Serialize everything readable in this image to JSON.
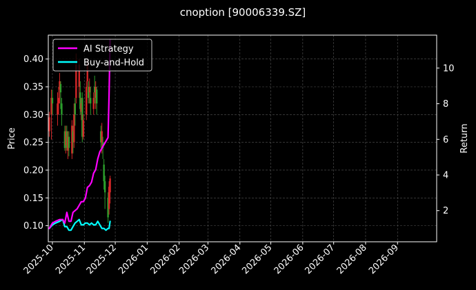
{
  "chart_data": {
    "type": "line",
    "title": "cnoption [90006339.SZ]",
    "ylabel_left": "Price",
    "ylabel_right": "Return",
    "x_ticks": [
      "2025-10",
      "2025-11",
      "2025-12",
      "2026-01",
      "2026-02",
      "2026-03",
      "2026-04",
      "2026-05",
      "2026-06",
      "2026-07",
      "2026-08",
      "2026-09"
    ],
    "y_left_ticks": [
      "0.10",
      "0.15",
      "0.20",
      "0.25",
      "0.30",
      "0.35",
      "0.40"
    ],
    "y_right_ticks": [
      "2",
      "4",
      "6",
      "8",
      "10"
    ],
    "ylim_left": [
      0.071,
      0.443
    ],
    "ylim_right": [
      0.25,
      11.85
    ],
    "xlim": [
      "2025-09-27",
      "2026-10-09"
    ],
    "grid": true,
    "legend_position": "top-left",
    "colors": {
      "up": "#d62728",
      "down": "#2ca02c",
      "strategy": "#ff00ff",
      "buy_hold": "#00ffff",
      "grid": "#555555",
      "background": "#000000"
    },
    "series": [
      {
        "name": "AI Strategy",
        "axis": "right",
        "x": [
          "2025-09-28",
          "2025-10-01",
          "2025-10-04",
          "2025-10-08",
          "2025-10-11",
          "2025-10-13",
          "2025-10-15",
          "2025-10-17",
          "2025-10-19",
          "2025-10-21",
          "2025-10-23",
          "2025-10-25",
          "2025-10-27",
          "2025-10-29",
          "2025-10-31",
          "2025-11-02",
          "2025-11-04",
          "2025-11-06",
          "2025-11-08",
          "2025-11-10",
          "2025-11-12",
          "2025-11-14",
          "2025-11-16",
          "2025-11-18",
          "2025-11-20",
          "2025-11-22",
          "2025-11-24",
          "2025-11-25",
          "2025-11-26"
        ],
        "values": [
          1.0,
          1.3,
          1.4,
          1.5,
          1.5,
          1.3,
          1.9,
          1.4,
          1.4,
          1.9,
          2.0,
          2.1,
          2.3,
          2.5,
          2.5,
          2.7,
          3.3,
          3.4,
          3.6,
          4.1,
          4.3,
          4.9,
          5.3,
          5.5,
          5.7,
          5.9,
          6.1,
          8.5,
          11.6
        ]
      },
      {
        "name": "Buy-and-Hold",
        "axis": "right",
        "x": [
          "2025-09-28",
          "2025-10-01",
          "2025-10-04",
          "2025-10-08",
          "2025-10-11",
          "2025-10-13",
          "2025-10-15",
          "2025-10-17",
          "2025-10-19",
          "2025-10-21",
          "2025-10-23",
          "2025-10-25",
          "2025-10-27",
          "2025-10-29",
          "2025-10-31",
          "2025-11-02",
          "2025-11-04",
          "2025-11-06",
          "2025-11-08",
          "2025-11-10",
          "2025-11-12",
          "2025-11-14",
          "2025-11-16",
          "2025-11-18",
          "2025-11-20",
          "2025-11-22",
          "2025-11-24",
          "2025-11-25",
          "2025-11-26"
        ],
        "values": [
          1.0,
          1.2,
          1.3,
          1.4,
          1.5,
          1.1,
          1.1,
          0.9,
          0.9,
          1.1,
          1.3,
          1.4,
          1.5,
          1.2,
          1.2,
          1.3,
          1.3,
          1.2,
          1.3,
          1.2,
          1.2,
          1.4,
          1.2,
          1.0,
          1.0,
          0.9,
          1.0,
          1.0,
          1.4
        ]
      }
    ],
    "candles": [
      {
        "date": "2025-09-28",
        "open": 0.27,
        "close": 0.295,
        "high": 0.305,
        "low": 0.26
      },
      {
        "date": "2025-09-30",
        "open": 0.3,
        "close": 0.33,
        "high": 0.345,
        "low": 0.255
      },
      {
        "date": "2025-10-01",
        "open": 0.33,
        "close": 0.32,
        "high": 0.345,
        "low": 0.3
      },
      {
        "date": "2025-10-06",
        "open": 0.3,
        "close": 0.32,
        "high": 0.34,
        "low": 0.28
      },
      {
        "date": "2025-10-07",
        "open": 0.32,
        "close": 0.33,
        "high": 0.35,
        "low": 0.3
      },
      {
        "date": "2025-10-08",
        "open": 0.345,
        "close": 0.36,
        "high": 0.375,
        "low": 0.32
      },
      {
        "date": "2025-10-09",
        "open": 0.355,
        "close": 0.34,
        "high": 0.36,
        "low": 0.31
      },
      {
        "date": "2025-10-10",
        "open": 0.32,
        "close": 0.3,
        "high": 0.33,
        "low": 0.28
      },
      {
        "date": "2025-10-13",
        "open": 0.27,
        "close": 0.24,
        "high": 0.28,
        "low": 0.235
      },
      {
        "date": "2025-10-14",
        "open": 0.245,
        "close": 0.27,
        "high": 0.28,
        "low": 0.23
      },
      {
        "date": "2025-10-15",
        "open": 0.27,
        "close": 0.24,
        "high": 0.28,
        "low": 0.235
      },
      {
        "date": "2025-10-16",
        "open": 0.235,
        "close": 0.26,
        "high": 0.27,
        "low": 0.22
      },
      {
        "date": "2025-10-17",
        "open": 0.26,
        "close": 0.24,
        "high": 0.27,
        "low": 0.225
      },
      {
        "date": "2025-10-20",
        "open": 0.23,
        "close": 0.28,
        "high": 0.29,
        "low": 0.22
      },
      {
        "date": "2025-10-21",
        "open": 0.27,
        "close": 0.25,
        "high": 0.28,
        "low": 0.23
      },
      {
        "date": "2025-10-22",
        "open": 0.25,
        "close": 0.3,
        "high": 0.32,
        "low": 0.24
      },
      {
        "date": "2025-10-23",
        "open": 0.32,
        "close": 0.3,
        "high": 0.33,
        "low": 0.28
      },
      {
        "date": "2025-10-24",
        "open": 0.33,
        "close": 0.39,
        "high": 0.41,
        "low": 0.32
      },
      {
        "date": "2025-10-27",
        "open": 0.35,
        "close": 0.39,
        "high": 0.4,
        "low": 0.33
      },
      {
        "date": "2025-10-28",
        "open": 0.34,
        "close": 0.31,
        "high": 0.36,
        "low": 0.3
      },
      {
        "date": "2025-10-29",
        "open": 0.305,
        "close": 0.32,
        "high": 0.33,
        "low": 0.29
      },
      {
        "date": "2025-10-30",
        "open": 0.33,
        "close": 0.26,
        "high": 0.34,
        "low": 0.25
      },
      {
        "date": "2025-10-31",
        "open": 0.26,
        "close": 0.29,
        "high": 0.3,
        "low": 0.255
      },
      {
        "date": "2025-11-03",
        "open": 0.3,
        "close": 0.35,
        "high": 0.36,
        "low": 0.29
      },
      {
        "date": "2025-11-04",
        "open": 0.36,
        "close": 0.39,
        "high": 0.4,
        "low": 0.35
      },
      {
        "date": "2025-11-05",
        "open": 0.35,
        "close": 0.33,
        "high": 0.36,
        "low": 0.32
      },
      {
        "date": "2025-11-06",
        "open": 0.34,
        "close": 0.35,
        "high": 0.365,
        "low": 0.32
      },
      {
        "date": "2025-11-07",
        "open": 0.33,
        "close": 0.32,
        "high": 0.35,
        "low": 0.3
      },
      {
        "date": "2025-11-10",
        "open": 0.31,
        "close": 0.33,
        "high": 0.34,
        "low": 0.3
      },
      {
        "date": "2025-11-11",
        "open": 0.35,
        "close": 0.34,
        "high": 0.37,
        "low": 0.32
      },
      {
        "date": "2025-11-12",
        "open": 0.33,
        "close": 0.35,
        "high": 0.36,
        "low": 0.31
      },
      {
        "date": "2025-11-13",
        "open": 0.345,
        "close": 0.32,
        "high": 0.35,
        "low": 0.3
      },
      {
        "date": "2025-11-17",
        "open": 0.27,
        "close": 0.25,
        "high": 0.28,
        "low": 0.24
      },
      {
        "date": "2025-11-18",
        "open": 0.25,
        "close": 0.27,
        "high": 0.285,
        "low": 0.23
      },
      {
        "date": "2025-11-19",
        "open": 0.25,
        "close": 0.24,
        "high": 0.26,
        "low": 0.22
      },
      {
        "date": "2025-11-20",
        "open": 0.21,
        "close": 0.18,
        "high": 0.22,
        "low": 0.165
      },
      {
        "date": "2025-11-21",
        "open": 0.18,
        "close": 0.16,
        "high": 0.19,
        "low": 0.13
      },
      {
        "date": "2025-11-24",
        "open": 0.15,
        "close": 0.115,
        "high": 0.16,
        "low": 0.105
      },
      {
        "date": "2025-11-25",
        "open": 0.13,
        "close": 0.17,
        "high": 0.18,
        "low": 0.12
      },
      {
        "date": "2025-11-26",
        "open": 0.16,
        "close": 0.185,
        "high": 0.19,
        "low": 0.14
      }
    ]
  }
}
